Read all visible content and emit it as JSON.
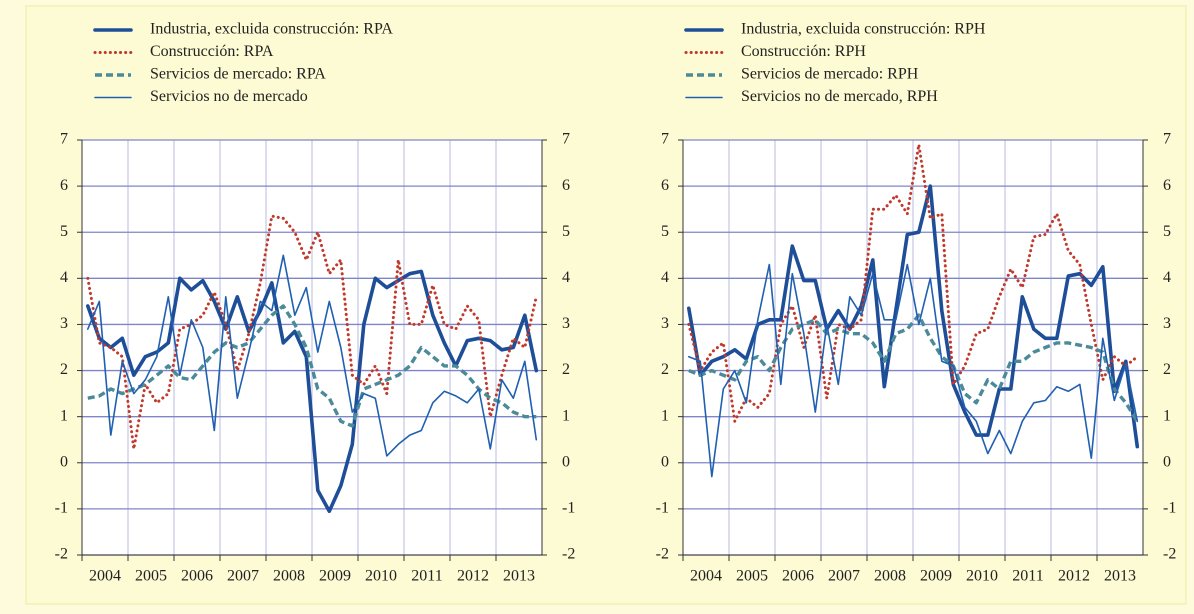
{
  "chart_data": [
    {
      "type": "line",
      "categories": [
        "2004",
        null,
        null,
        null,
        "2005",
        null,
        null,
        null,
        "2006",
        null,
        null,
        null,
        "2007",
        null,
        null,
        null,
        "2008",
        null,
        null,
        null,
        "2009",
        null,
        null,
        null,
        "2010",
        null,
        null,
        null,
        "2011",
        null,
        null,
        null,
        "2012",
        null,
        null,
        null,
        "2013",
        null,
        null,
        null
      ],
      "ylim": [
        -2,
        7
      ],
      "yticks": [
        -2,
        -1,
        0,
        1,
        2,
        3,
        4,
        5,
        6,
        7
      ],
      "y2lim": [
        -2,
        7
      ],
      "y2ticks": [
        -2,
        -1,
        0,
        1,
        2,
        3,
        4,
        5,
        6,
        7
      ],
      "grid": true,
      "series": [
        {
          "name": "Industria, excluida construcción: RPA",
          "color": "#1f4e99",
          "style": "thick",
          "values": [
            3.4,
            2.7,
            2.5,
            2.7,
            1.9,
            2.3,
            2.4,
            2.6,
            4.0,
            3.75,
            3.95,
            3.5,
            2.9,
            3.6,
            2.85,
            3.3,
            3.9,
            2.6,
            2.85,
            2.3,
            -0.6,
            -1.05,
            -0.5,
            0.4,
            3.0,
            4.0,
            3.8,
            3.95,
            4.1,
            4.15,
            3.2,
            2.6,
            2.1,
            2.65,
            2.7,
            2.65,
            2.45,
            2.5,
            3.2,
            2.0
          ]
        },
        {
          "name": "Construcción: RPA",
          "color": "#c0392b",
          "style": "dotted",
          "values": [
            4.0,
            2.6,
            2.5,
            2.3,
            0.3,
            1.7,
            1.3,
            1.5,
            2.9,
            3.0,
            3.2,
            3.7,
            3.0,
            2.0,
            2.8,
            3.9,
            5.35,
            5.3,
            5.0,
            4.4,
            5.0,
            4.1,
            4.4,
            1.9,
            1.7,
            2.1,
            1.5,
            4.4,
            3.0,
            3.0,
            3.85,
            3.0,
            2.9,
            3.4,
            3.1,
            1.0,
            1.9,
            2.7,
            2.5,
            3.6
          ]
        },
        {
          "name": "Servicios de mercado: RPA",
          "color": "#4a8a99",
          "style": "dashed",
          "values": [
            1.4,
            1.45,
            1.6,
            1.5,
            1.6,
            1.7,
            1.9,
            2.1,
            1.85,
            1.8,
            2.1,
            2.4,
            2.6,
            2.5,
            2.6,
            2.9,
            3.2,
            3.4,
            3.0,
            2.5,
            1.6,
            1.4,
            0.9,
            0.8,
            1.6,
            1.7,
            1.8,
            1.9,
            2.1,
            2.5,
            2.3,
            2.1,
            2.1,
            1.9,
            1.6,
            1.4,
            1.3,
            1.1,
            1.0,
            1.0
          ]
        },
        {
          "name": "Servicios no de mercado",
          "color": "#2060b0",
          "style": "thin",
          "values": [
            2.9,
            3.5,
            0.6,
            2.2,
            1.5,
            1.8,
            2.3,
            3.6,
            1.9,
            3.1,
            2.5,
            0.7,
            3.6,
            1.4,
            2.4,
            3.5,
            3.3,
            4.5,
            3.2,
            3.8,
            2.4,
            3.5,
            2.5,
            1.1,
            1.5,
            1.4,
            0.15,
            0.4,
            0.6,
            0.7,
            1.3,
            1.55,
            1.45,
            1.3,
            1.6,
            0.3,
            1.8,
            1.4,
            2.2,
            0.5
          ]
        }
      ]
    },
    {
      "type": "line",
      "categories": [
        "2004",
        null,
        null,
        null,
        "2005",
        null,
        null,
        null,
        "2006",
        null,
        null,
        null,
        "2007",
        null,
        null,
        null,
        "2008",
        null,
        null,
        null,
        "2009",
        null,
        null,
        null,
        "2010",
        null,
        null,
        null,
        "2011",
        null,
        null,
        null,
        "2012",
        null,
        null,
        null,
        "2013",
        null,
        null,
        null
      ],
      "ylim": [
        -2,
        7
      ],
      "yticks": [
        -2,
        -1,
        0,
        1,
        2,
        3,
        4,
        5,
        6,
        7
      ],
      "y2lim": [
        -2,
        7
      ],
      "y2ticks": [
        -2,
        -1,
        0,
        1,
        2,
        3,
        4,
        5,
        6,
        7
      ],
      "grid": true,
      "series": [
        {
          "name": "Industria, excluida construcción: RPH",
          "color": "#1f4e99",
          "style": "thick",
          "values": [
            3.35,
            1.9,
            2.2,
            2.3,
            2.45,
            2.25,
            3.0,
            3.1,
            3.1,
            4.7,
            3.95,
            3.95,
            2.9,
            3.3,
            2.9,
            3.4,
            4.4,
            1.65,
            3.3,
            4.95,
            5.0,
            6.0,
            3.3,
            1.7,
            1.1,
            0.6,
            0.6,
            1.6,
            1.6,
            3.6,
            2.9,
            2.7,
            2.7,
            4.05,
            4.1,
            3.85,
            4.25,
            1.55,
            2.2,
            0.35
          ]
        },
        {
          "name": "Construcción: RPH",
          "color": "#c0392b",
          "style": "dotted",
          "values": [
            3.0,
            2.0,
            2.4,
            2.6,
            0.9,
            1.4,
            1.2,
            1.5,
            3.0,
            3.4,
            2.5,
            3.2,
            1.4,
            3.0,
            2.9,
            3.1,
            5.5,
            5.5,
            5.8,
            5.4,
            6.9,
            5.3,
            5.4,
            1.7,
            2.1,
            2.8,
            2.9,
            3.6,
            4.2,
            3.8,
            4.9,
            4.95,
            5.4,
            4.6,
            4.3,
            3.0,
            1.8,
            2.3,
            2.1,
            2.3
          ]
        },
        {
          "name": "Servicios de mercado: RPH",
          "color": "#4a8a99",
          "style": "dashed",
          "values": [
            2.0,
            1.9,
            2.0,
            1.9,
            1.8,
            2.2,
            2.3,
            2.0,
            2.5,
            2.9,
            3.0,
            3.1,
            2.8,
            2.9,
            2.8,
            2.8,
            2.6,
            2.2,
            2.8,
            2.9,
            3.2,
            2.7,
            2.3,
            2.1,
            1.5,
            1.3,
            1.8,
            1.6,
            2.2,
            2.2,
            2.4,
            2.5,
            2.6,
            2.6,
            2.55,
            2.5,
            2.4,
            1.6,
            1.3,
            0.9
          ]
        },
        {
          "name": "Servicios no de mercado, RPH",
          "color": "#2060b0",
          "style": "thin",
          "values": [
            2.3,
            2.2,
            -0.3,
            1.6,
            2.0,
            1.3,
            3.1,
            4.3,
            1.7,
            4.1,
            2.8,
            1.1,
            3.0,
            1.7,
            3.6,
            3.2,
            4.1,
            3.1,
            3.1,
            4.3,
            3.0,
            4.0,
            2.2,
            2.1,
            1.2,
            0.9,
            0.2,
            0.7,
            0.2,
            0.9,
            1.3,
            1.35,
            1.65,
            1.55,
            1.7,
            0.1,
            2.7,
            1.35,
            2.15,
            0.9
          ]
        }
      ]
    }
  ]
}
